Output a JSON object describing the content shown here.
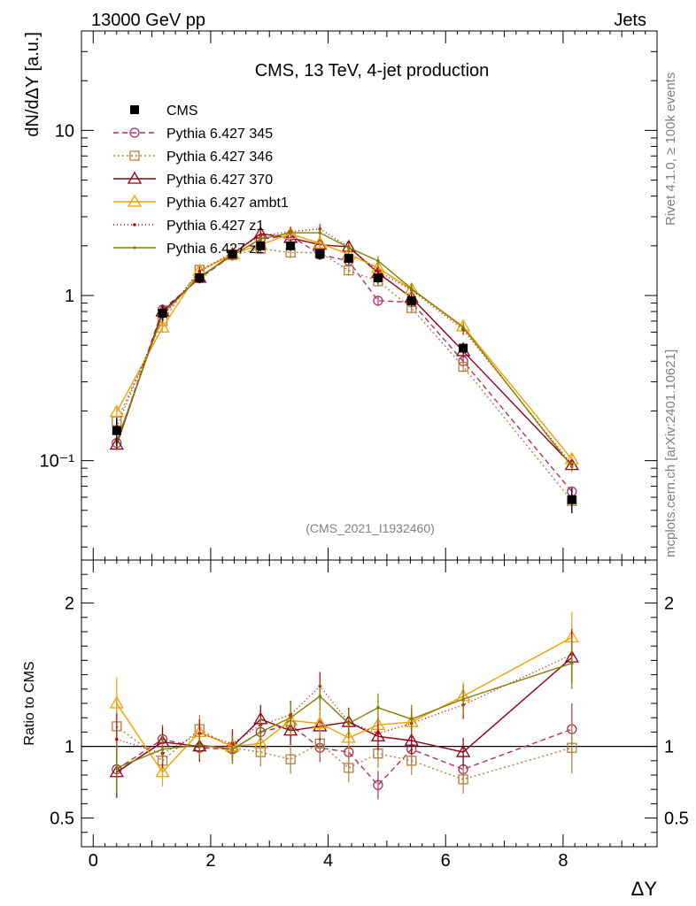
{
  "header": {
    "left": "13000 GeV pp",
    "right": "Jets"
  },
  "side_labels": {
    "rivet": "Rivet 4.1.0, ≥ 100k events",
    "mcplots": "mcplots.cern.ch [arXiv:2401.10621]"
  },
  "chart_data": [
    {
      "type": "line",
      "title": "CMS, 13 TeV, 4-jet production",
      "analysis": "(CMS_2021_I1932460)",
      "xlabel": "ΔY",
      "ylabel": "dN/dΔY [a.u.]",
      "yscale": "log",
      "xlim": [
        -0.2,
        9.6
      ],
      "ylim": [
        0.025,
        40
      ],
      "ytick_labels": [
        {
          "value": 0.1,
          "label": "10⁻¹"
        },
        {
          "value": 1,
          "label": "1"
        },
        {
          "value": 10,
          "label": "10"
        }
      ],
      "x": [
        0.4,
        1.18,
        1.81,
        2.37,
        2.85,
        3.36,
        3.86,
        4.35,
        4.85,
        5.42,
        6.3,
        8.15
      ],
      "data": {
        "name": "CMS",
        "color": "#000000",
        "values": [
          0.152,
          0.78,
          1.28,
          1.78,
          2.0,
          2.0,
          1.78,
          1.68,
          1.28,
          0.93,
          0.48,
          0.058
        ],
        "errors": [
          0.03,
          0.07,
          0.09,
          0.12,
          0.14,
          0.14,
          0.13,
          0.12,
          0.1,
          0.07,
          0.04,
          0.01
        ]
      },
      "series": [
        {
          "name": "Pythia 6.427 345",
          "color": "#b03060",
          "dash": "6,4",
          "marker": "circle",
          "values": [
            0.128,
            0.82,
            1.27,
            1.75,
            2.2,
            2.3,
            1.77,
            1.62,
            0.93,
            0.91,
            0.4,
            0.065
          ]
        },
        {
          "name": "Pythia 6.427 346",
          "color": "#b08040",
          "dash": "2,3",
          "marker": "square",
          "values": [
            0.173,
            0.7,
            1.43,
            1.76,
            1.92,
            1.82,
            1.82,
            1.42,
            1.22,
            0.84,
            0.37,
            0.057
          ]
        },
        {
          "name": "Pythia 6.427 370",
          "color": "#8b0016",
          "dash": "",
          "marker": "triangle",
          "values": [
            0.125,
            0.8,
            1.28,
            1.78,
            2.37,
            2.23,
            2.03,
            1.97,
            1.37,
            0.97,
            0.46,
            0.094
          ]
        },
        {
          "name": "Pythia 6.427 ambt1",
          "color": "#f0a000",
          "dash": "",
          "marker": "triangle",
          "values": [
            0.197,
            0.64,
            1.41,
            1.78,
            2.03,
            2.36,
            2.07,
            1.78,
            1.47,
            1.09,
            0.65,
            0.102
          ]
        },
        {
          "name": "Pythia 6.427 z1",
          "color": "#cc0000",
          "dash": "1,3",
          "marker": "dot",
          "values": [
            0.16,
            0.74,
            1.4,
            1.82,
            2.3,
            2.44,
            2.53,
            1.97,
            1.4,
            1.08,
            0.62,
            0.095
          ]
        },
        {
          "name": "Pythia 6.427 z2",
          "color": "#808000",
          "dash": "",
          "marker": "dot",
          "values": [
            0.13,
            0.77,
            1.3,
            1.75,
            2.2,
            2.4,
            2.4,
            1.95,
            1.62,
            1.1,
            0.64,
            0.092
          ]
        }
      ]
    },
    {
      "type": "line",
      "title": "",
      "xlabel": "ΔY",
      "ylabel": "Ratio to CMS",
      "xlim": [
        -0.2,
        9.6
      ],
      "ylim": [
        0.3,
        2.3
      ],
      "xtick_labels": [
        "0",
        "2",
        "4",
        "6",
        "8"
      ],
      "ytick_labels": [
        {
          "value": 0.5,
          "label": "0.5"
        },
        {
          "value": 1,
          "label": "1"
        },
        {
          "value": 2,
          "label": "2"
        }
      ],
      "reference": 1.0,
      "x": [
        0.4,
        1.18,
        1.81,
        2.37,
        2.85,
        3.36,
        3.86,
        4.35,
        4.85,
        5.42,
        6.3,
        8.15
      ],
      "series": [
        {
          "name": "Pythia 6.427 345",
          "values": [
            0.84,
            1.05,
            0.99,
            0.98,
            1.1,
            1.15,
            0.99,
            0.96,
            0.73,
            0.98,
            0.84,
            1.12
          ]
        },
        {
          "name": "Pythia 6.427 346",
          "values": [
            1.14,
            0.9,
            1.12,
            0.99,
            0.96,
            0.91,
            1.02,
            0.85,
            0.95,
            0.9,
            0.77,
            0.99
          ]
        },
        {
          "name": "Pythia 6.427 370",
          "values": [
            0.82,
            1.03,
            1.0,
            1.0,
            1.19,
            1.11,
            1.14,
            1.17,
            1.07,
            1.04,
            0.96,
            1.62
          ]
        },
        {
          "name": "Pythia 6.427 ambt1",
          "values": [
            1.3,
            0.82,
            1.1,
            1.0,
            1.02,
            1.18,
            1.16,
            1.06,
            1.15,
            1.17,
            1.35,
            1.76
          ]
        },
        {
          "name": "Pythia 6.427 z1",
          "values": [
            1.05,
            0.95,
            1.09,
            1.02,
            1.15,
            1.22,
            1.42,
            1.17,
            1.09,
            1.16,
            1.29,
            1.64
          ]
        },
        {
          "name": "Pythia 6.427 z2",
          "values": [
            0.85,
            0.98,
            1.01,
            0.98,
            1.1,
            1.2,
            1.35,
            1.16,
            1.27,
            1.19,
            1.33,
            1.58
          ]
        }
      ]
    }
  ]
}
